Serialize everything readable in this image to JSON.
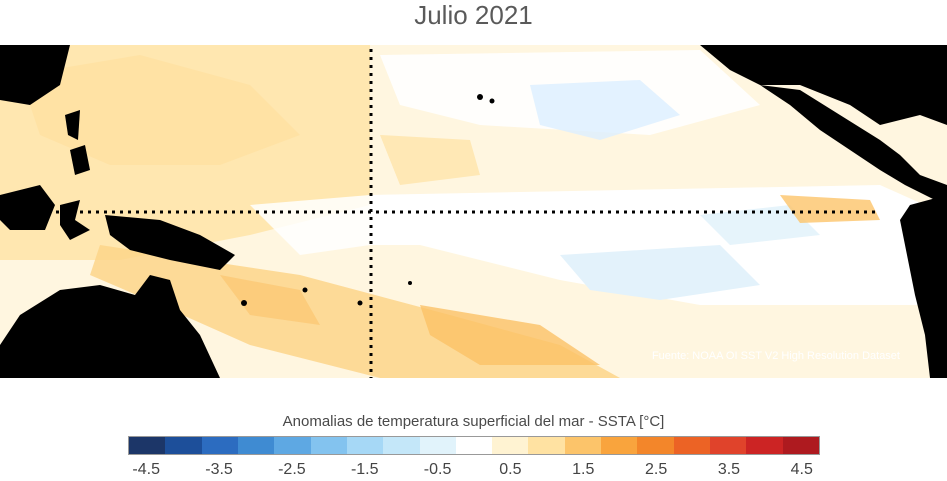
{
  "title": "Julio 2021",
  "source": "Fuente: NOAA OI SST V2 High Resolution Dataset",
  "colorbar": {
    "label": "Anomalias de temperatura superficial del mar - SSTA  [°C]",
    "colors": [
      "#1c3668",
      "#1d4f9a",
      "#2c6cc0",
      "#3f8bd2",
      "#5ea8e3",
      "#83c3ef",
      "#a6d8f6",
      "#c4e7f9",
      "#e1f3fb",
      "#ffffff",
      "#fff3d2",
      "#ffe2a2",
      "#fcc46a",
      "#f9a43d",
      "#f3862a",
      "#ec6325",
      "#e0432b",
      "#cc2424",
      "#ae1a1f"
    ],
    "tick_labels": [
      "-4.5",
      "-3.5",
      "-2.5",
      "-1.5",
      "-0.5",
      "0.5",
      "1.5",
      "2.5",
      "3.5",
      "4.5"
    ]
  },
  "map": {
    "land_color": "#000000",
    "ocean_background": "#fff8e6",
    "equator_line": "dotted",
    "dateline_line": "dotted"
  }
}
